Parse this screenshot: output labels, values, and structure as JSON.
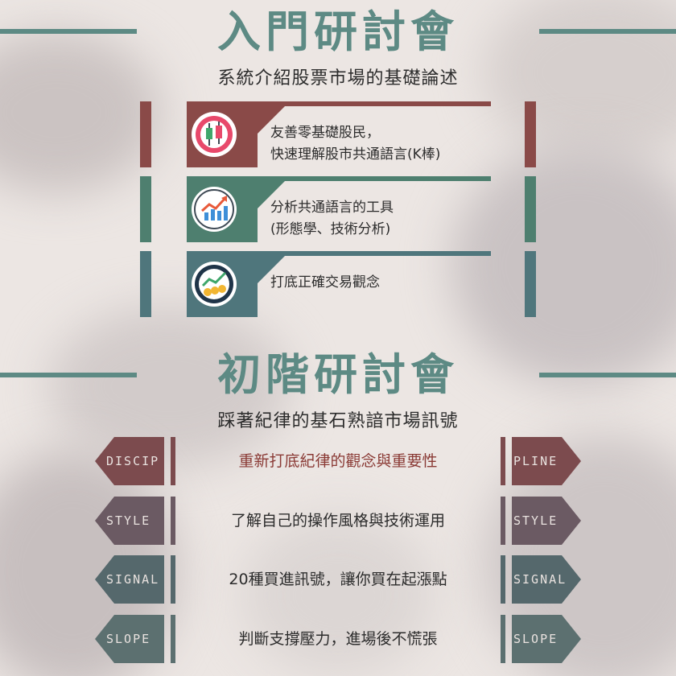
{
  "beginner": {
    "title": "入門研討會",
    "subtitle": "系統介紹股票市場的基礎論述",
    "items": [
      {
        "line1": "友善零基礎股民，",
        "line2": "快速理解股市共通語言(K棒)",
        "icon": "candlestick-icon",
        "color": "#8a4a48"
      },
      {
        "line1": "分析共通語言的工具",
        "line2": "(形態學、技術分析)",
        "icon": "trend-chart-icon",
        "color": "#4e7f6f"
      },
      {
        "line1": "",
        "line2": "打底正確交易觀念",
        "icon": "coins-growth-icon",
        "color": "#4f767c"
      }
    ]
  },
  "advanced": {
    "title": "初階研討會",
    "subtitle": "踩著紀律的基石熟諳市場訊號",
    "rows": [
      {
        "left": "DISCIP",
        "right": "PLINE",
        "text": "重新打底紀律的觀念與重要性",
        "color": "#7c4b4e",
        "text_color": "#8a3a35"
      },
      {
        "left": "STYLE",
        "right": "STYLE",
        "text": "了解自己的操作風格與技術運用",
        "color": "#6b5a63",
        "text_color": "#2c2c2c"
      },
      {
        "left": "SIGNAL",
        "right": "SIGNAL",
        "text": "20種買進訊號，讓你買在起漲點",
        "color": "#55686c",
        "text_color": "#2c2c2c"
      },
      {
        "left": "SLOPE",
        "right": "SLOPE",
        "text": "判斷支撐壓力，進場後不慌張",
        "color": "#5c7070",
        "text_color": "#2c2c2c"
      }
    ]
  },
  "colors": {
    "accent": "#5d8a84"
  }
}
